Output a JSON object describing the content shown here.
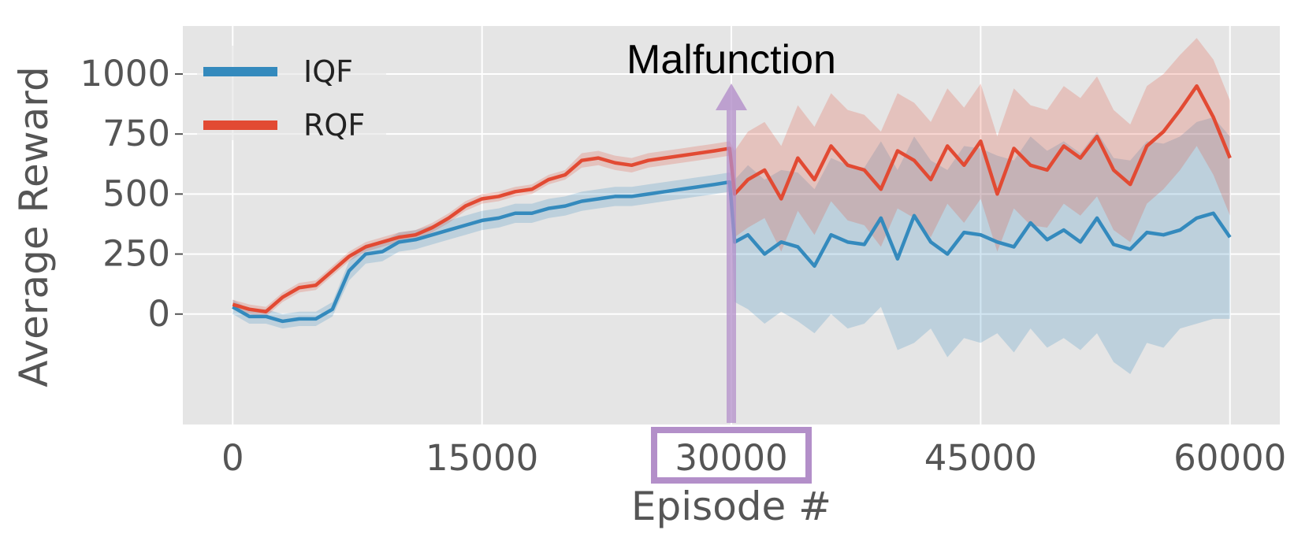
{
  "chart_data": {
    "type": "line",
    "title": "",
    "xlabel": "Episode #",
    "ylabel": "Average Reward",
    "xlim": [
      -3000,
      63000
    ],
    "ylim": [
      -460,
      1200
    ],
    "x_ticks": [
      0,
      15000,
      30000,
      45000,
      60000
    ],
    "x_tick_labels": [
      "0",
      "15000",
      "30000",
      "45000",
      "60000"
    ],
    "y_ticks": [
      0,
      250,
      500,
      750,
      1000
    ],
    "y_tick_labels": [
      "0",
      "250",
      "500",
      "750",
      "1000"
    ],
    "grid": true,
    "legend_position": "top-left",
    "background": "#e5e5e5",
    "series": [
      {
        "name": "IQF",
        "color": "#348abd",
        "x": [
          0,
          1000,
          2000,
          3000,
          4000,
          5000,
          6000,
          7000,
          8000,
          9000,
          10000,
          11000,
          12000,
          13000,
          14000,
          15000,
          16000,
          17000,
          18000,
          19000,
          20000,
          21000,
          22000,
          23000,
          24000,
          25000,
          26000,
          27000,
          28000,
          29000,
          29900,
          30200,
          31000,
          32000,
          33000,
          34000,
          35000,
          36000,
          37000,
          38000,
          39000,
          40000,
          41000,
          42000,
          43000,
          44000,
          45000,
          46000,
          47000,
          48000,
          49000,
          50000,
          51000,
          52000,
          53000,
          54000,
          55000,
          56000,
          57000,
          58000,
          59000,
          60000
        ],
        "y": [
          30,
          -10,
          -10,
          -30,
          -20,
          -20,
          20,
          180,
          250,
          260,
          300,
          310,
          330,
          350,
          370,
          390,
          400,
          420,
          420,
          440,
          450,
          470,
          480,
          490,
          490,
          500,
          510,
          520,
          530,
          540,
          550,
          300,
          330,
          250,
          300,
          280,
          200,
          330,
          300,
          290,
          400,
          230,
          410,
          300,
          250,
          340,
          330,
          300,
          280,
          380,
          310,
          350,
          300,
          400,
          290,
          270,
          340,
          330,
          350,
          400,
          420,
          320
        ],
        "lower": [
          0,
          -40,
          -40,
          -60,
          -50,
          -50,
          -10,
          140,
          210,
          220,
          260,
          270,
          290,
          310,
          330,
          350,
          360,
          380,
          380,
          400,
          410,
          430,
          440,
          450,
          450,
          460,
          470,
          480,
          490,
          500,
          510,
          50,
          20,
          -40,
          10,
          -30,
          -80,
          0,
          -60,
          -40,
          30,
          -150,
          -120,
          -60,
          -180,
          -100,
          -120,
          -80,
          -160,
          -60,
          -140,
          -100,
          -150,
          -80,
          -200,
          -250,
          -120,
          -140,
          -60,
          -40,
          -20,
          -20
        ],
        "upper": [
          60,
          20,
          20,
          0,
          10,
          10,
          50,
          220,
          290,
          300,
          340,
          350,
          370,
          390,
          410,
          430,
          440,
          460,
          460,
          480,
          490,
          510,
          520,
          530,
          530,
          540,
          550,
          560,
          570,
          580,
          590,
          560,
          620,
          560,
          600,
          590,
          520,
          650,
          620,
          610,
          720,
          600,
          740,
          640,
          600,
          700,
          690,
          660,
          640,
          740,
          680,
          720,
          670,
          760,
          650,
          640,
          720,
          710,
          740,
          800,
          820,
          740
        ]
      },
      {
        "name": "RQF",
        "color": "#e24a33",
        "x": [
          0,
          1000,
          2000,
          3000,
          4000,
          5000,
          6000,
          7000,
          8000,
          9000,
          10000,
          11000,
          12000,
          13000,
          14000,
          15000,
          16000,
          17000,
          18000,
          19000,
          20000,
          21000,
          22000,
          23000,
          24000,
          25000,
          26000,
          27000,
          28000,
          29000,
          29900,
          30200,
          31000,
          32000,
          33000,
          34000,
          35000,
          36000,
          37000,
          38000,
          39000,
          40000,
          41000,
          42000,
          43000,
          44000,
          45000,
          46000,
          47000,
          48000,
          49000,
          50000,
          51000,
          52000,
          53000,
          54000,
          55000,
          56000,
          57000,
          58000,
          59000,
          60000
        ],
        "y": [
          40,
          20,
          10,
          70,
          110,
          120,
          180,
          240,
          280,
          300,
          320,
          330,
          360,
          400,
          450,
          480,
          490,
          510,
          520,
          560,
          580,
          640,
          650,
          630,
          620,
          640,
          650,
          660,
          670,
          680,
          690,
          500,
          560,
          600,
          480,
          650,
          560,
          700,
          620,
          600,
          520,
          680,
          640,
          560,
          700,
          620,
          720,
          500,
          690,
          620,
          600,
          700,
          650,
          740,
          600,
          540,
          700,
          760,
          850,
          950,
          820,
          650
        ],
        "lower": [
          20,
          0,
          -10,
          50,
          90,
          100,
          160,
          220,
          260,
          280,
          300,
          310,
          340,
          380,
          430,
          460,
          470,
          490,
          500,
          540,
          560,
          610,
          620,
          600,
          590,
          610,
          620,
          630,
          640,
          650,
          660,
          320,
          360,
          400,
          260,
          430,
          330,
          470,
          390,
          370,
          280,
          440,
          400,
          320,
          460,
          380,
          480,
          260,
          440,
          370,
          360,
          460,
          410,
          490,
          350,
          300,
          460,
          520,
          600,
          700,
          580,
          410
        ],
        "upper": [
          60,
          40,
          30,
          90,
          130,
          140,
          200,
          260,
          300,
          320,
          340,
          350,
          380,
          420,
          470,
          500,
          510,
          530,
          540,
          580,
          600,
          670,
          680,
          660,
          650,
          670,
          680,
          690,
          700,
          710,
          720,
          680,
          760,
          800,
          700,
          870,
          780,
          920,
          850,
          830,
          760,
          920,
          880,
          800,
          940,
          860,
          960,
          740,
          940,
          870,
          850,
          950,
          900,
          990,
          850,
          790,
          950,
          1000,
          1080,
          1150,
          1060,
          890
        ]
      }
    ],
    "annotations": [
      {
        "text": "Malfunction",
        "x": 30000,
        "y": 1070
      }
    ],
    "highlight_tick": "30000",
    "highlight_color": "#b38fc9"
  }
}
